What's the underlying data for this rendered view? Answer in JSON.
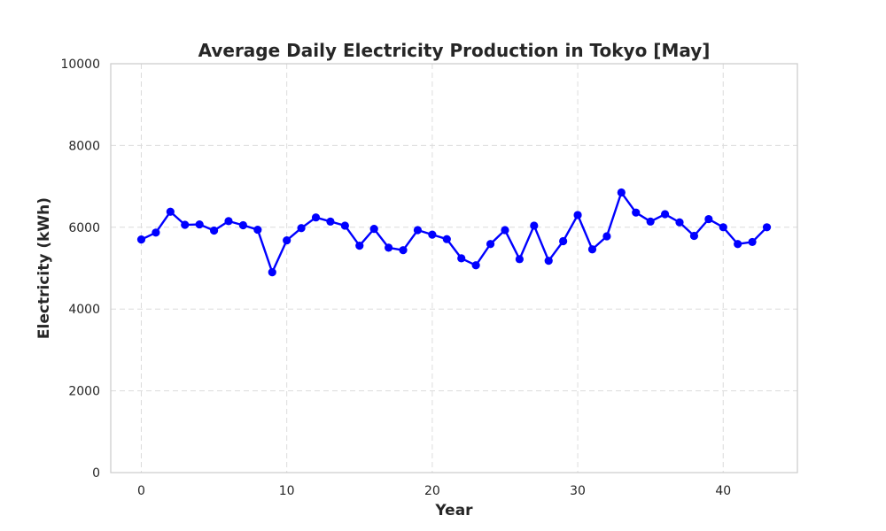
{
  "chart_data": {
    "type": "line",
    "title": "Average Daily Electricity Production in Tokyo [May]",
    "xlabel": "Year",
    "ylabel": "Electricity (kWh)",
    "xlim": [
      -2.1,
      45.1
    ],
    "ylim": [
      0,
      10000
    ],
    "xticks": [
      0,
      10,
      20,
      30,
      40
    ],
    "yticks": [
      0,
      2000,
      4000,
      6000,
      8000,
      10000
    ],
    "grid": true,
    "legend": "none",
    "color": "#0000ff",
    "series": [
      {
        "x": [
          0,
          1,
          2,
          3,
          4,
          5,
          6,
          7,
          8,
          9,
          10,
          11,
          12,
          13,
          14,
          15,
          16,
          17,
          18,
          19,
          20,
          21,
          22,
          23,
          24,
          25,
          26,
          27,
          28,
          29,
          30,
          31,
          32,
          33,
          34,
          35,
          36,
          37,
          38,
          39,
          40,
          41,
          42,
          43
        ],
        "values": [
          5700,
          5870,
          6380,
          6060,
          6070,
          5920,
          6150,
          6050,
          5940,
          4900,
          5680,
          5980,
          6240,
          6140,
          6040,
          5550,
          5960,
          5500,
          5440,
          5930,
          5820,
          5710,
          5240,
          5070,
          5590,
          5930,
          5220,
          6040,
          5180,
          5660,
          6300,
          5460,
          5780,
          6850,
          6360,
          6140,
          6320,
          6120,
          5790,
          6200,
          6000,
          5590,
          5640,
          6000
        ]
      }
    ]
  }
}
